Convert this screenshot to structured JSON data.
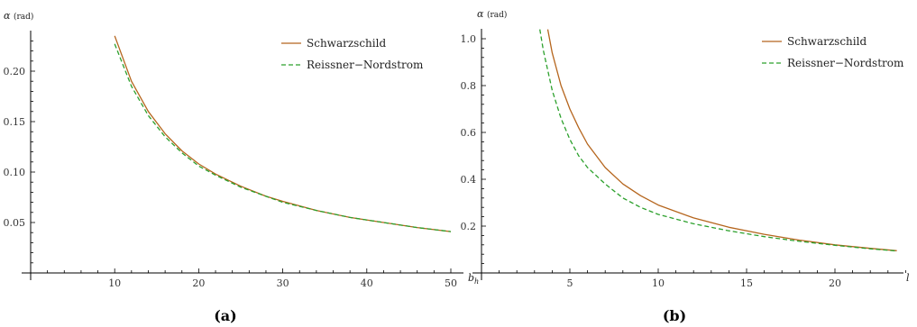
{
  "chart_data": [
    {
      "type": "line",
      "panel_label": "(a)",
      "xlabel": "b",
      "xlabel_sub": "h",
      "ylabel": "α",
      "ylabel_unit": "(rad)",
      "xlim": [
        0,
        51.5
      ],
      "ylim": [
        0,
        0.24
      ],
      "xticks": [
        10,
        20,
        30,
        40,
        50
      ],
      "yticks": [
        0.05,
        0.1,
        0.15,
        0.2
      ],
      "ytick_labels": [
        "0.05",
        "0.10",
        "0.15",
        "0.20"
      ],
      "legend_position": "top-right",
      "series": [
        {
          "name": "Schwarzschild",
          "color": "#b5651d",
          "style": "solid",
          "x": [
            10,
            12,
            14,
            16,
            18,
            20,
            22,
            25,
            28,
            30,
            34,
            38,
            42,
            46,
            50
          ],
          "y": [
            0.235,
            0.19,
            0.16,
            0.138,
            0.121,
            0.108,
            0.098,
            0.086,
            0.076,
            0.071,
            0.062,
            0.055,
            0.05,
            0.045,
            0.041
          ]
        },
        {
          "name": "Reissner−Nordstrom",
          "color": "#2ca02c",
          "style": "dashed",
          "x": [
            10,
            12,
            14,
            16,
            18,
            20,
            22,
            25,
            28,
            30,
            34,
            38,
            42,
            46,
            50
          ],
          "y": [
            0.227,
            0.185,
            0.156,
            0.135,
            0.119,
            0.106,
            0.097,
            0.085,
            0.076,
            0.07,
            0.062,
            0.055,
            0.05,
            0.045,
            0.041
          ]
        }
      ]
    },
    {
      "type": "line",
      "panel_label": "(b)",
      "xlabel": "l",
      "ylabel": "α",
      "ylabel_unit": "(rad)",
      "xlim": [
        0,
        24.5
      ],
      "ylim": [
        0,
        1.04
      ],
      "xticks": [
        5,
        10,
        15,
        20
      ],
      "yticks": [
        0.2,
        0.4,
        0.6,
        0.8,
        1.0
      ],
      "ytick_labels": [
        "0.2",
        "0.4",
        "0.6",
        "0.8",
        "1.0"
      ],
      "legend_position": "top-right",
      "series": [
        {
          "name": "Schwarzschild",
          "color": "#b5651d",
          "style": "solid",
          "x": [
            3.75,
            4,
            4.5,
            5,
            5.5,
            6,
            7,
            8,
            9,
            10,
            12,
            14,
            16,
            18,
            20,
            22,
            23.5
          ],
          "y": [
            1.04,
            0.94,
            0.8,
            0.7,
            0.62,
            0.55,
            0.45,
            0.38,
            0.33,
            0.29,
            0.235,
            0.195,
            0.165,
            0.14,
            0.12,
            0.105,
            0.095
          ]
        },
        {
          "name": "Reissner−Nordstrom",
          "color": "#2ca02c",
          "style": "dashed",
          "x": [
            3.3,
            3.5,
            4,
            4.5,
            5,
            5.5,
            6,
            7,
            8,
            9,
            10,
            12,
            14,
            16,
            18,
            20,
            22,
            23.5
          ],
          "y": [
            1.04,
            0.95,
            0.78,
            0.66,
            0.57,
            0.5,
            0.45,
            0.38,
            0.32,
            0.28,
            0.25,
            0.21,
            0.18,
            0.155,
            0.135,
            0.118,
            0.103,
            0.094
          ]
        }
      ]
    }
  ]
}
